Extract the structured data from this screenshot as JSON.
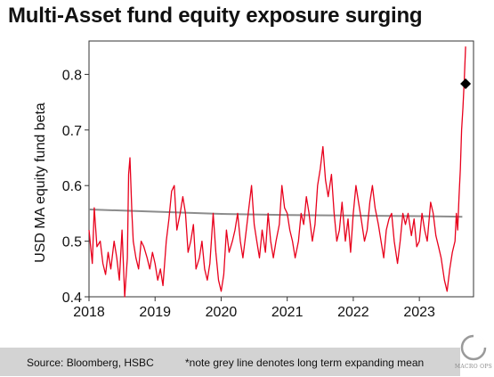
{
  "chart_data": {
    "type": "line",
    "title": "Multi-Asset fund equity exposure surging",
    "xlabel": "",
    "ylabel": "USD MA equity fund beta",
    "xlim": [
      2018.0,
      2023.82
    ],
    "ylim": [
      0.4,
      0.86
    ],
    "x_ticks": [
      2018,
      2019,
      2020,
      2021,
      2022,
      2023
    ],
    "y_ticks": [
      0.4,
      0.5,
      0.6,
      0.7,
      0.8
    ],
    "y_tick_labels": [
      "0.4",
      "0.5",
      "0.6",
      "0.7",
      "0.8"
    ],
    "grid": false,
    "legend": "none",
    "series": [
      {
        "color": "#e8001c",
        "x": [
          2018.0,
          2018.05,
          2018.08,
          2018.12,
          2018.17,
          2018.21,
          2018.25,
          2018.29,
          2018.33,
          2018.38,
          2018.42,
          2018.46,
          2018.5,
          2018.54,
          2018.58,
          2018.6,
          2018.62,
          2018.65,
          2018.67,
          2018.71,
          2018.75,
          2018.79,
          2018.83,
          2018.88,
          2018.92,
          2018.96,
          2019.0,
          2019.04,
          2019.08,
          2019.12,
          2019.17,
          2019.21,
          2019.25,
          2019.29,
          2019.33,
          2019.38,
          2019.42,
          2019.46,
          2019.5,
          2019.54,
          2019.58,
          2019.62,
          2019.67,
          2019.71,
          2019.75,
          2019.79,
          2019.83,
          2019.88,
          2019.92,
          2019.96,
          2020.0,
          2020.04,
          2020.08,
          2020.12,
          2020.17,
          2020.21,
          2020.25,
          2020.29,
          2020.33,
          2020.38,
          2020.42,
          2020.46,
          2020.5,
          2020.54,
          2020.58,
          2020.62,
          2020.67,
          2020.71,
          2020.75,
          2020.79,
          2020.83,
          2020.88,
          2020.92,
          2020.96,
          2021.0,
          2021.04,
          2021.08,
          2021.12,
          2021.17,
          2021.21,
          2021.25,
          2021.29,
          2021.33,
          2021.38,
          2021.42,
          2021.46,
          2021.5,
          2021.54,
          2021.58,
          2021.62,
          2021.67,
          2021.71,
          2021.75,
          2021.79,
          2021.83,
          2021.88,
          2021.92,
          2021.96,
          2022.0,
          2022.04,
          2022.08,
          2022.12,
          2022.17,
          2022.21,
          2022.25,
          2022.29,
          2022.33,
          2022.38,
          2022.42,
          2022.46,
          2022.5,
          2022.54,
          2022.58,
          2022.62,
          2022.67,
          2022.71,
          2022.75,
          2022.79,
          2022.83,
          2022.88,
          2022.92,
          2022.96,
          2023.0,
          2023.04,
          2023.08,
          2023.12,
          2023.17,
          2023.21,
          2023.25,
          2023.29,
          2023.33,
          2023.38,
          2023.42,
          2023.46,
          2023.5,
          2023.54,
          2023.56,
          2023.58,
          2023.6,
          2023.62,
          2023.64,
          2023.66,
          2023.68,
          2023.7
        ],
        "y": [
          0.52,
          0.46,
          0.56,
          0.49,
          0.5,
          0.46,
          0.44,
          0.48,
          0.45,
          0.5,
          0.47,
          0.43,
          0.52,
          0.4,
          0.47,
          0.62,
          0.65,
          0.55,
          0.5,
          0.47,
          0.45,
          0.5,
          0.49,
          0.47,
          0.45,
          0.48,
          0.46,
          0.43,
          0.45,
          0.42,
          0.5,
          0.54,
          0.59,
          0.6,
          0.52,
          0.55,
          0.58,
          0.55,
          0.48,
          0.5,
          0.53,
          0.45,
          0.47,
          0.5,
          0.45,
          0.43,
          0.46,
          0.55,
          0.48,
          0.43,
          0.41,
          0.44,
          0.52,
          0.48,
          0.5,
          0.52,
          0.55,
          0.5,
          0.47,
          0.52,
          0.56,
          0.6,
          0.53,
          0.5,
          0.47,
          0.52,
          0.48,
          0.55,
          0.5,
          0.47,
          0.5,
          0.53,
          0.6,
          0.56,
          0.55,
          0.52,
          0.5,
          0.47,
          0.5,
          0.55,
          0.53,
          0.58,
          0.55,
          0.5,
          0.53,
          0.6,
          0.63,
          0.67,
          0.61,
          0.58,
          0.62,
          0.55,
          0.5,
          0.52,
          0.57,
          0.5,
          0.54,
          0.48,
          0.55,
          0.6,
          0.57,
          0.54,
          0.5,
          0.52,
          0.57,
          0.6,
          0.56,
          0.53,
          0.5,
          0.47,
          0.52,
          0.54,
          0.55,
          0.5,
          0.46,
          0.5,
          0.55,
          0.53,
          0.55,
          0.51,
          0.54,
          0.49,
          0.5,
          0.55,
          0.52,
          0.5,
          0.57,
          0.55,
          0.51,
          0.49,
          0.47,
          0.43,
          0.41,
          0.45,
          0.48,
          0.5,
          0.55,
          0.52,
          0.58,
          0.63,
          0.7,
          0.74,
          0.79,
          0.85
        ]
      },
      {
        "color": "#8c8c8c",
        "x": [
          2018.0,
          2019.0,
          2020.0,
          2021.0,
          2022.0,
          2023.0,
          2023.65
        ],
        "y": [
          0.557,
          0.553,
          0.549,
          0.547,
          0.546,
          0.545,
          0.544
        ]
      }
    ],
    "annotations": [
      {
        "type": "marker",
        "shape": "diamond",
        "color": "#000000",
        "x": 2023.7,
        "y": 0.783
      }
    ]
  },
  "footer": {
    "source": "Source: Bloomberg, HSBC",
    "note": "*note grey line denotes long term expanding mean"
  },
  "watermark": {
    "text": "MACRO OPS"
  }
}
